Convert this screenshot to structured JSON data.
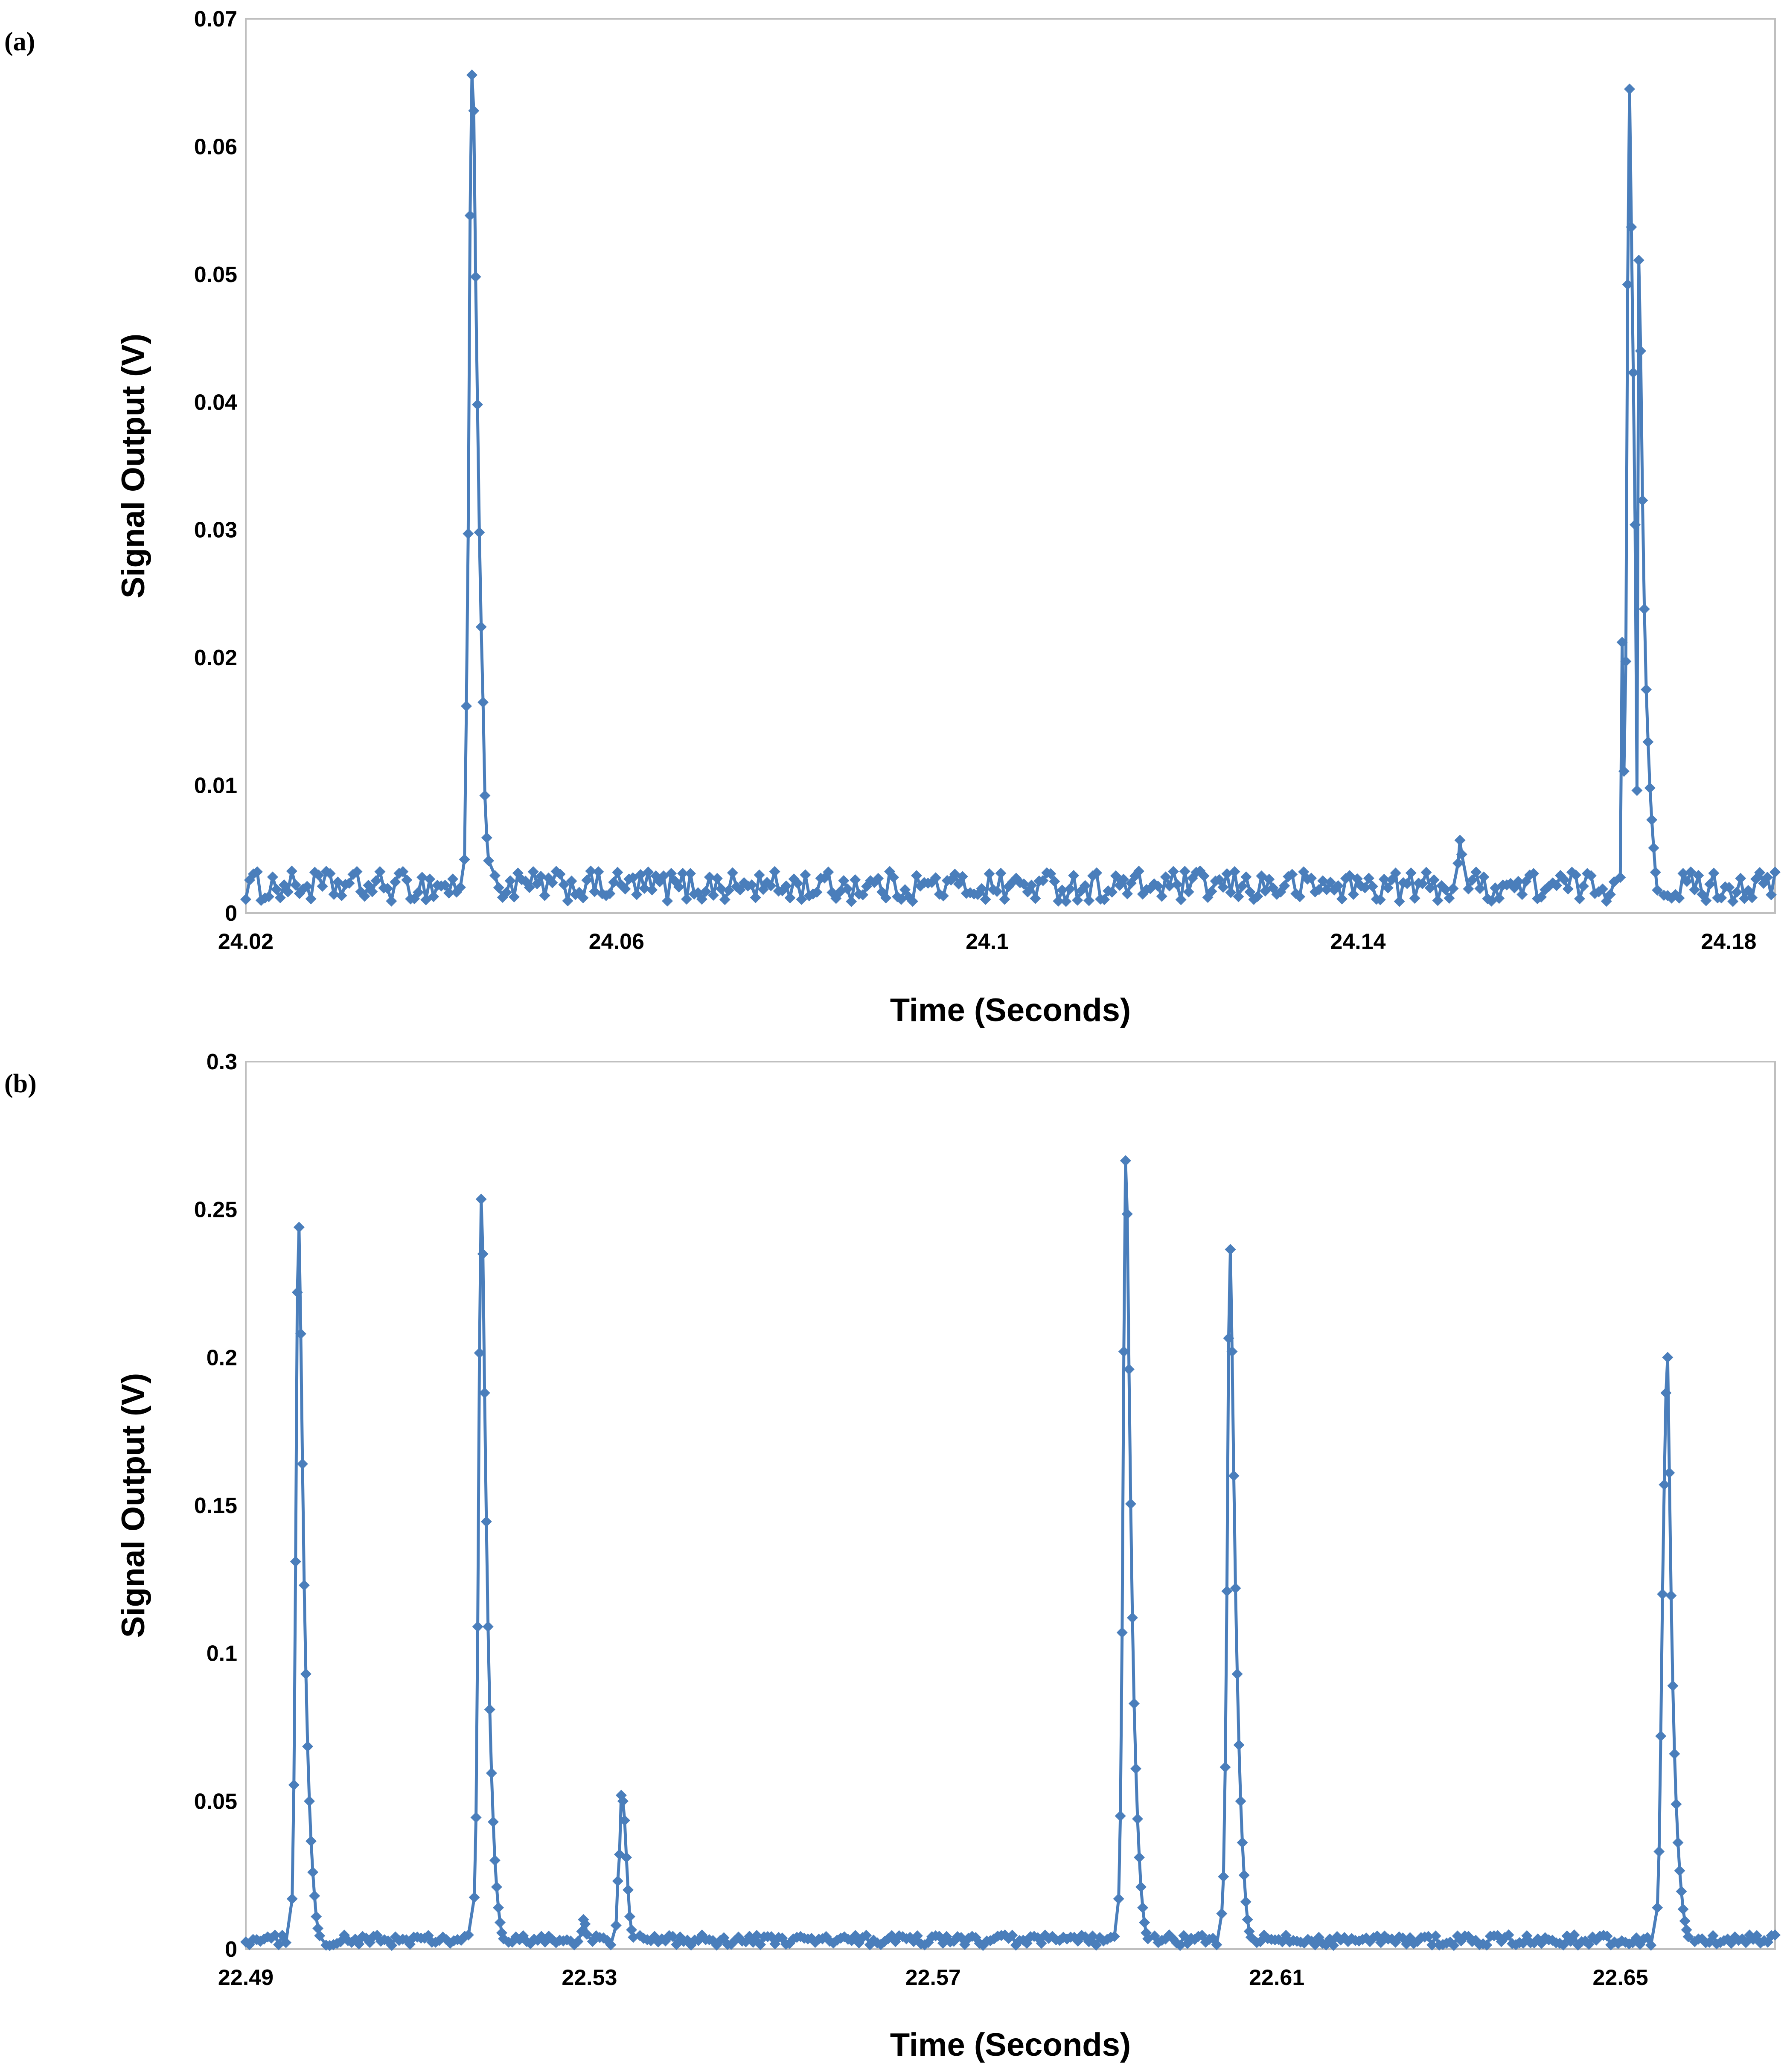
{
  "chart_data": [
    {
      "panel": "(a)",
      "type": "line",
      "marker": "diamond",
      "color": "#4a7ebb",
      "xlabel": "Time (Seconds)",
      "ylabel": "Signal Output (V)",
      "xlim": [
        24.02,
        24.185
      ],
      "ylim": [
        0,
        0.07
      ],
      "xticks": [
        24.02,
        24.06,
        24.1,
        24.14,
        24.18
      ],
      "xtick_labels": [
        "24.02",
        "24.06",
        "24.1",
        "24.14",
        "24.18"
      ],
      "yticks": [
        0,
        0.01,
        0.02,
        0.03,
        0.04,
        0.05,
        0.06,
        0.07
      ],
      "ytick_labels": [
        "0",
        "0.01",
        "0.02",
        "0.03",
        "0.04",
        "0.05",
        "0.06",
        "0.07"
      ],
      "noise": {
        "x_start": 24.02,
        "x_end": 24.185,
        "samples": 400,
        "base": 0.0021,
        "amplitude": 0.0012
      },
      "peaks": [
        {
          "x": [
            24.0436,
            24.0438,
            24.044,
            24.0442,
            24.0444,
            24.0446,
            24.0448,
            24.045,
            24.0452
          ],
          "y": [
            0.0042,
            0.0162,
            0.0297,
            0.0546,
            0.0656,
            0.0628,
            0.0498,
            0.0398,
            0.0298
          ]
        },
        {
          "x": [
            24.0454,
            24.0456,
            24.0458,
            24.046,
            24.0462
          ],
          "y": [
            0.0224,
            0.0165,
            0.0092,
            0.0059,
            0.0041
          ]
        },
        {
          "x": [
            24.1508,
            24.151,
            24.1512
          ],
          "y": [
            0.0039,
            0.0057,
            0.0046
          ]
        },
        {
          "x": [
            24.1683,
            24.1685,
            24.1687,
            24.1689,
            24.1691,
            24.1693,
            24.1695
          ],
          "y": [
            0.0028,
            0.0212,
            0.0111,
            0.0197,
            0.0492,
            0.0645,
            0.0537
          ]
        },
        {
          "x": [
            24.1697,
            24.1699,
            24.1701,
            24.1703,
            24.1705,
            24.1707,
            24.1709,
            24.1711,
            24.1713,
            24.1715
          ],
          "y": [
            0.0423,
            0.0304,
            0.0096,
            0.0511,
            0.044,
            0.0323,
            0.0238,
            0.0175,
            0.0134,
            0.0098
          ]
        },
        {
          "x": [
            24.1717,
            24.1719,
            24.1721,
            24.1723
          ],
          "y": [
            0.0073,
            0.0051,
            0.0032,
            0.0018
          ]
        }
      ]
    },
    {
      "panel": "(b)",
      "type": "line",
      "marker": "diamond",
      "color": "#4a7ebb",
      "xlabel": "Time (Seconds)",
      "ylabel": "Signal Output (V)",
      "xlim": [
        22.49,
        22.668
      ],
      "ylim": [
        0,
        0.3
      ],
      "xticks": [
        22.49,
        22.53,
        22.57,
        22.61,
        22.65
      ],
      "xtick_labels": [
        "22.49",
        "22.53",
        "22.57",
        "22.61",
        "22.65"
      ],
      "yticks": [
        0,
        0.05,
        0.1,
        0.15,
        0.2,
        0.25,
        0.3
      ],
      "ytick_labels": [
        "0",
        "0.05",
        "0.1",
        "0.15",
        "0.2",
        "0.25",
        "0.3"
      ],
      "noise": {
        "x_start": 22.49,
        "x_end": 22.668,
        "samples": 420,
        "base": 0.003,
        "amplitude": 0.0018
      },
      "peaks": [
        {
          "x": [
            22.4954,
            22.4956,
            22.4958,
            22.496,
            22.4962,
            22.4964,
            22.4966,
            22.4968,
            22.497,
            22.4972,
            22.4974,
            22.4976,
            22.4978,
            22.498
          ],
          "y": [
            0.017,
            0.0555,
            0.131,
            0.222,
            0.244,
            0.208,
            0.164,
            0.123,
            0.093,
            0.0685,
            0.05,
            0.0365,
            0.026,
            0.018
          ]
        },
        {
          "x": [
            22.4982,
            22.4984,
            22.4986
          ],
          "y": [
            0.011,
            0.007,
            0.0045
          ]
        },
        {
          "x": [
            22.5166,
            22.5168,
            22.517,
            22.5172,
            22.5174,
            22.5176,
            22.5178,
            22.518,
            22.5182,
            22.5184,
            22.5186,
            22.5188,
            22.519,
            22.5192,
            22.5194
          ],
          "y": [
            0.0175,
            0.0445,
            0.109,
            0.2015,
            0.2535,
            0.235,
            0.188,
            0.1445,
            0.109,
            0.081,
            0.0595,
            0.043,
            0.03,
            0.021,
            0.014
          ]
        },
        {
          "x": [
            22.5196,
            22.5198,
            22.52
          ],
          "y": [
            0.009,
            0.0055,
            0.0035
          ]
        },
        {
          "x": [
            22.5291,
            22.5293,
            22.5295,
            22.5297
          ],
          "y": [
            0.006,
            0.01,
            0.0085,
            0.005
          ]
        },
        {
          "x": [
            22.5331,
            22.5333,
            22.5335,
            22.5337,
            22.5339,
            22.5341,
            22.5343,
            22.5345,
            22.5347
          ],
          "y": [
            0.008,
            0.023,
            0.032,
            0.052,
            0.05,
            0.0435,
            0.031,
            0.02,
            0.011
          ]
        },
        {
          "x": [
            22.5349,
            22.5351
          ],
          "y": [
            0.0065,
            0.004
          ]
        },
        {
          "x": [
            22.5916,
            22.5918,
            22.592,
            22.5922,
            22.5924,
            22.5926,
            22.5928,
            22.593,
            22.5932,
            22.5934,
            22.5936,
            22.5938,
            22.594,
            22.5942,
            22.5944
          ],
          "y": [
            0.017,
            0.045,
            0.107,
            0.202,
            0.2665,
            0.2485,
            0.196,
            0.1505,
            0.112,
            0.083,
            0.061,
            0.044,
            0.031,
            0.021,
            0.014
          ]
        },
        {
          "x": [
            22.5946,
            22.5948,
            22.595
          ],
          "y": [
            0.009,
            0.0055,
            0.0035
          ]
        },
        {
          "x": [
            22.6036,
            22.6038,
            22.604,
            22.6042,
            22.6044,
            22.6046,
            22.6048,
            22.605,
            22.6052,
            22.6054,
            22.6056,
            22.6058,
            22.606,
            22.6062,
            22.6064
          ],
          "y": [
            0.012,
            0.0245,
            0.0615,
            0.121,
            0.2065,
            0.2365,
            0.202,
            0.16,
            0.122,
            0.093,
            0.069,
            0.05,
            0.036,
            0.025,
            0.016
          ]
        },
        {
          "x": [
            22.6066,
            22.6068,
            22.607
          ],
          "y": [
            0.01,
            0.006,
            0.004
          ]
        },
        {
          "x": [
            22.6543,
            22.6545,
            22.6547,
            22.6549,
            22.6551,
            22.6553,
            22.6555,
            22.6557,
            22.6559,
            22.6561,
            22.6563,
            22.6565,
            22.6567,
            22.6569,
            22.6571
          ],
          "y": [
            0.014,
            0.033,
            0.072,
            0.12,
            0.157,
            0.188,
            0.2,
            0.161,
            0.1195,
            0.089,
            0.066,
            0.049,
            0.036,
            0.0265,
            0.0195
          ]
        },
        {
          "x": [
            22.6573,
            22.6575,
            22.6577,
            22.6579
          ],
          "y": [
            0.0135,
            0.0095,
            0.0065,
            0.0042
          ]
        }
      ]
    }
  ]
}
